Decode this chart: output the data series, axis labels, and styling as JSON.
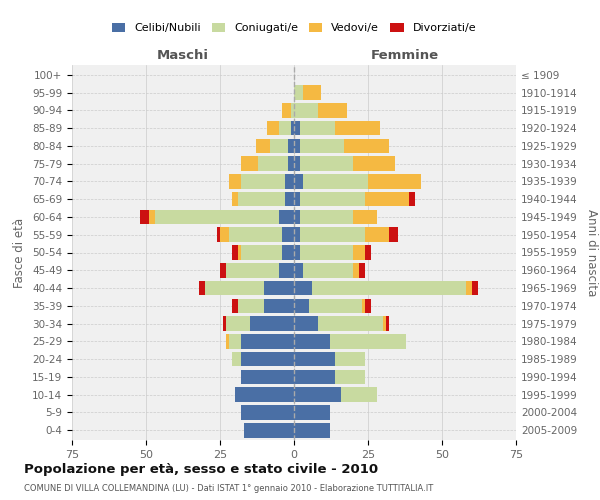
{
  "age_groups": [
    "0-4",
    "5-9",
    "10-14",
    "15-19",
    "20-24",
    "25-29",
    "30-34",
    "35-39",
    "40-44",
    "45-49",
    "50-54",
    "55-59",
    "60-64",
    "65-69",
    "70-74",
    "75-79",
    "80-84",
    "85-89",
    "90-94",
    "95-99",
    "100+"
  ],
  "birth_years": [
    "2005-2009",
    "2000-2004",
    "1995-1999",
    "1990-1994",
    "1985-1989",
    "1980-1984",
    "1975-1979",
    "1970-1974",
    "1965-1969",
    "1960-1964",
    "1955-1959",
    "1950-1954",
    "1945-1949",
    "1940-1944",
    "1935-1939",
    "1930-1934",
    "1925-1929",
    "1920-1924",
    "1915-1919",
    "1910-1914",
    "≤ 1909"
  ],
  "colors": {
    "celibi": "#4a6fa5",
    "coniugati": "#c8daa0",
    "vedovi": "#f5b942",
    "divorziati": "#cc1111",
    "background": "#f0f0f0",
    "grid": "#cccccc"
  },
  "maschi": {
    "celibi": [
      17,
      18,
      20,
      18,
      18,
      18,
      15,
      10,
      10,
      5,
      4,
      4,
      5,
      3,
      3,
      2,
      2,
      1,
      0,
      0,
      0
    ],
    "coniugati": [
      0,
      0,
      0,
      0,
      3,
      4,
      8,
      9,
      20,
      18,
      14,
      18,
      42,
      16,
      15,
      10,
      6,
      4,
      1,
      0,
      0
    ],
    "vedovi": [
      0,
      0,
      0,
      0,
      0,
      1,
      0,
      0,
      0,
      0,
      1,
      3,
      2,
      2,
      4,
      6,
      5,
      4,
      3,
      0,
      0
    ],
    "divorziati": [
      0,
      0,
      0,
      0,
      0,
      0,
      1,
      2,
      2,
      2,
      2,
      1,
      3,
      0,
      0,
      0,
      0,
      0,
      0,
      0,
      0
    ]
  },
  "femmine": {
    "celibi": [
      12,
      12,
      16,
      14,
      14,
      12,
      8,
      5,
      6,
      3,
      2,
      2,
      2,
      2,
      3,
      2,
      2,
      2,
      0,
      0,
      0
    ],
    "coniugati": [
      0,
      0,
      12,
      10,
      10,
      26,
      22,
      18,
      52,
      17,
      18,
      22,
      18,
      22,
      22,
      18,
      15,
      12,
      8,
      3,
      0
    ],
    "vedovi": [
      0,
      0,
      0,
      0,
      0,
      0,
      1,
      1,
      2,
      2,
      4,
      8,
      8,
      15,
      18,
      14,
      15,
      15,
      10,
      6,
      0
    ],
    "divorziati": [
      0,
      0,
      0,
      0,
      0,
      0,
      1,
      2,
      2,
      2,
      2,
      3,
      0,
      2,
      0,
      0,
      0,
      0,
      0,
      0,
      0
    ]
  },
  "title": "Popolazione per età, sesso e stato civile - 2010",
  "subtitle": "COMUNE DI VILLA COLLEMANDINA (LU) - Dati ISTAT 1° gennaio 2010 - Elaborazione TUTTITALIA.IT",
  "xlabel_left": "Maschi",
  "xlabel_right": "Femmine",
  "ylabel_left": "Fasce di età",
  "ylabel_right": "Anni di nascita",
  "xlim": 75
}
